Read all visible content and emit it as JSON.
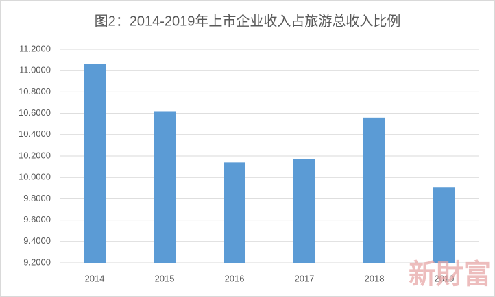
{
  "chart_data": {
    "type": "bar",
    "title": "图2：2014-2019年上市企业收入占旅游总收入比例",
    "categories": [
      "2014",
      "2015",
      "2016",
      "2017",
      "2018",
      "2019"
    ],
    "values": [
      11.06,
      10.62,
      10.14,
      10.17,
      10.56,
      9.91
    ],
    "color": "#5b9bd5",
    "ylim": [
      9.2,
      11.2
    ],
    "yticks": [
      {
        "value": 9.2,
        "label": "9.2000"
      },
      {
        "value": 9.4,
        "label": "9.4000"
      },
      {
        "value": 9.6,
        "label": "9.6000"
      },
      {
        "value": 9.8,
        "label": "9.8000"
      },
      {
        "value": 10.0,
        "label": "10.0000"
      },
      {
        "value": 10.2,
        "label": "10.2000"
      },
      {
        "value": 10.4,
        "label": "10.4000"
      },
      {
        "value": 10.6,
        "label": "10.6000"
      },
      {
        "value": 10.8,
        "label": "10.8000"
      },
      {
        "value": 11.0,
        "label": "11.0000"
      },
      {
        "value": 11.2,
        "label": "11.2000"
      }
    ],
    "grid": true,
    "watermark": "新財富"
  }
}
